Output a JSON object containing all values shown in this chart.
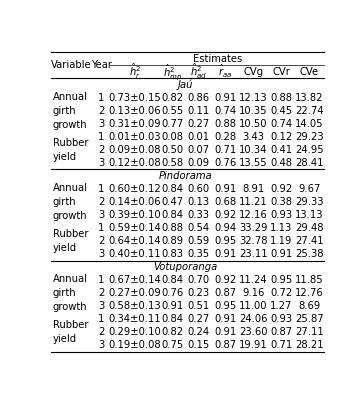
{
  "sections": [
    {
      "location": "Jaú",
      "rows": [
        {
          "variable": "Annual\ngirth\ngrowth",
          "year": "1",
          "h2r": "0.73±0.15",
          "h2mp": "0.82",
          "h2ad": "0.86",
          "raa": "0.91",
          "CVg": "12.13",
          "CVr": "0.88",
          "CVe": "13.82"
        },
        {
          "variable": "",
          "year": "2",
          "h2r": "0.13±0.06",
          "h2mp": "0.55",
          "h2ad": "0.11",
          "raa": "0.74",
          "CVg": "10.35",
          "CVr": "0.45",
          "CVe": "22.74"
        },
        {
          "variable": "",
          "year": "3",
          "h2r": "0.31±0.09",
          "h2mp": "0.77",
          "h2ad": "0.27",
          "raa": "0.88",
          "CVg": "10.50",
          "CVr": "0.74",
          "CVe": "14.05"
        },
        {
          "variable": "Rubber\nyield",
          "year": "1",
          "h2r": "0.01±0.03",
          "h2mp": "0.08",
          "h2ad": "0.01",
          "raa": "0.28",
          "CVg": "3.43",
          "CVr": "0.12",
          "CVe": "29.23"
        },
        {
          "variable": "",
          "year": "2",
          "h2r": "0.09±0.08",
          "h2mp": "0.50",
          "h2ad": "0.07",
          "raa": "0.71",
          "CVg": "10.34",
          "CVr": "0.41",
          "CVe": "24.95"
        },
        {
          "variable": "",
          "year": "3",
          "h2r": "0.12±0.08",
          "h2mp": "0.58",
          "h2ad": "0.09",
          "raa": "0.76",
          "CVg": "13.55",
          "CVr": "0.48",
          "CVe": "28.41"
        }
      ]
    },
    {
      "location": "Pindorama",
      "rows": [
        {
          "variable": "Annual\ngirth\ngrowth",
          "year": "1",
          "h2r": "0.60±0.12",
          "h2mp": "0.84",
          "h2ad": "0.60",
          "raa": "0.91",
          "CVg": "8.91",
          "CVr": "0.92",
          "CVe": "9.67"
        },
        {
          "variable": "",
          "year": "2",
          "h2r": "0.14±0.06",
          "h2mp": "0.47",
          "h2ad": "0.13",
          "raa": "0.68",
          "CVg": "11.21",
          "CVr": "0.38",
          "CVe": "29.33"
        },
        {
          "variable": "",
          "year": "3",
          "h2r": "0.39±0.10",
          "h2mp": "0.84",
          "h2ad": "0.33",
          "raa": "0.92",
          "CVg": "12.16",
          "CVr": "0.93",
          "CVe": "13.13"
        },
        {
          "variable": "Rubber\nyield",
          "year": "1",
          "h2r": "0.59±0.14",
          "h2mp": "0.88",
          "h2ad": "0.54",
          "raa": "0.94",
          "CVg": "33.29",
          "CVr": "1.13",
          "CVe": "29.48"
        },
        {
          "variable": "",
          "year": "2",
          "h2r": "0.64±0.14",
          "h2mp": "0.89",
          "h2ad": "0.59",
          "raa": "0.95",
          "CVg": "32.78",
          "CVr": "1.19",
          "CVe": "27.41"
        },
        {
          "variable": "",
          "year": "3",
          "h2r": "0.40±0.11",
          "h2mp": "0.83",
          "h2ad": "0.35",
          "raa": "0.91",
          "CVg": "23.11",
          "CVr": "0.91",
          "CVe": "25.38"
        }
      ]
    },
    {
      "location": "Votuporanga",
      "rows": [
        {
          "variable": "Annual\ngirth\ngrowth",
          "year": "1",
          "h2r": "0.67±0.14",
          "h2mp": "0.84",
          "h2ad": "0.70",
          "raa": "0.92",
          "CVg": "11.24",
          "CVr": "0.95",
          "CVe": "11.85"
        },
        {
          "variable": "",
          "year": "2",
          "h2r": "0.27±0.09",
          "h2mp": "0.76",
          "h2ad": "0.23",
          "raa": "0.87",
          "CVg": "9.16",
          "CVr": "0.72",
          "CVe": "12.76"
        },
        {
          "variable": "",
          "year": "3",
          "h2r": "0.58±0.13",
          "h2mp": "0.91",
          "h2ad": "0.51",
          "raa": "0.95",
          "CVg": "11.00",
          "CVr": "1.27",
          "CVe": "8.69"
        },
        {
          "variable": "Rubber\nyield",
          "year": "1",
          "h2r": "0.34±0.11",
          "h2mp": "0.84",
          "h2ad": "0.27",
          "raa": "0.91",
          "CVg": "24.06",
          "CVr": "0.93",
          "CVe": "25.87"
        },
        {
          "variable": "",
          "year": "2",
          "h2r": "0.29±0.10",
          "h2mp": "0.82",
          "h2ad": "0.24",
          "raa": "0.91",
          "CVg": "23.60",
          "CVr": "0.87",
          "CVe": "27.11"
        },
        {
          "variable": "",
          "year": "3",
          "h2r": "0.19±0.08",
          "h2mp": "0.75",
          "h2ad": "0.15",
          "raa": "0.87",
          "CVg": "19.91",
          "CVr": "0.71",
          "CVe": "28.21"
        }
      ]
    }
  ],
  "sub_headers": [
    "$\\hat{h}^2_r$",
    "$\\hat{h}^2_{mp}$",
    "$\\hat{h}^2_{ad}$",
    "$\\hat{r}_{aa}$",
    "CVg",
    "CVr",
    "CVe"
  ],
  "bg_color": "#ffffff",
  "text_color": "#000000",
  "font_size": 7.2
}
